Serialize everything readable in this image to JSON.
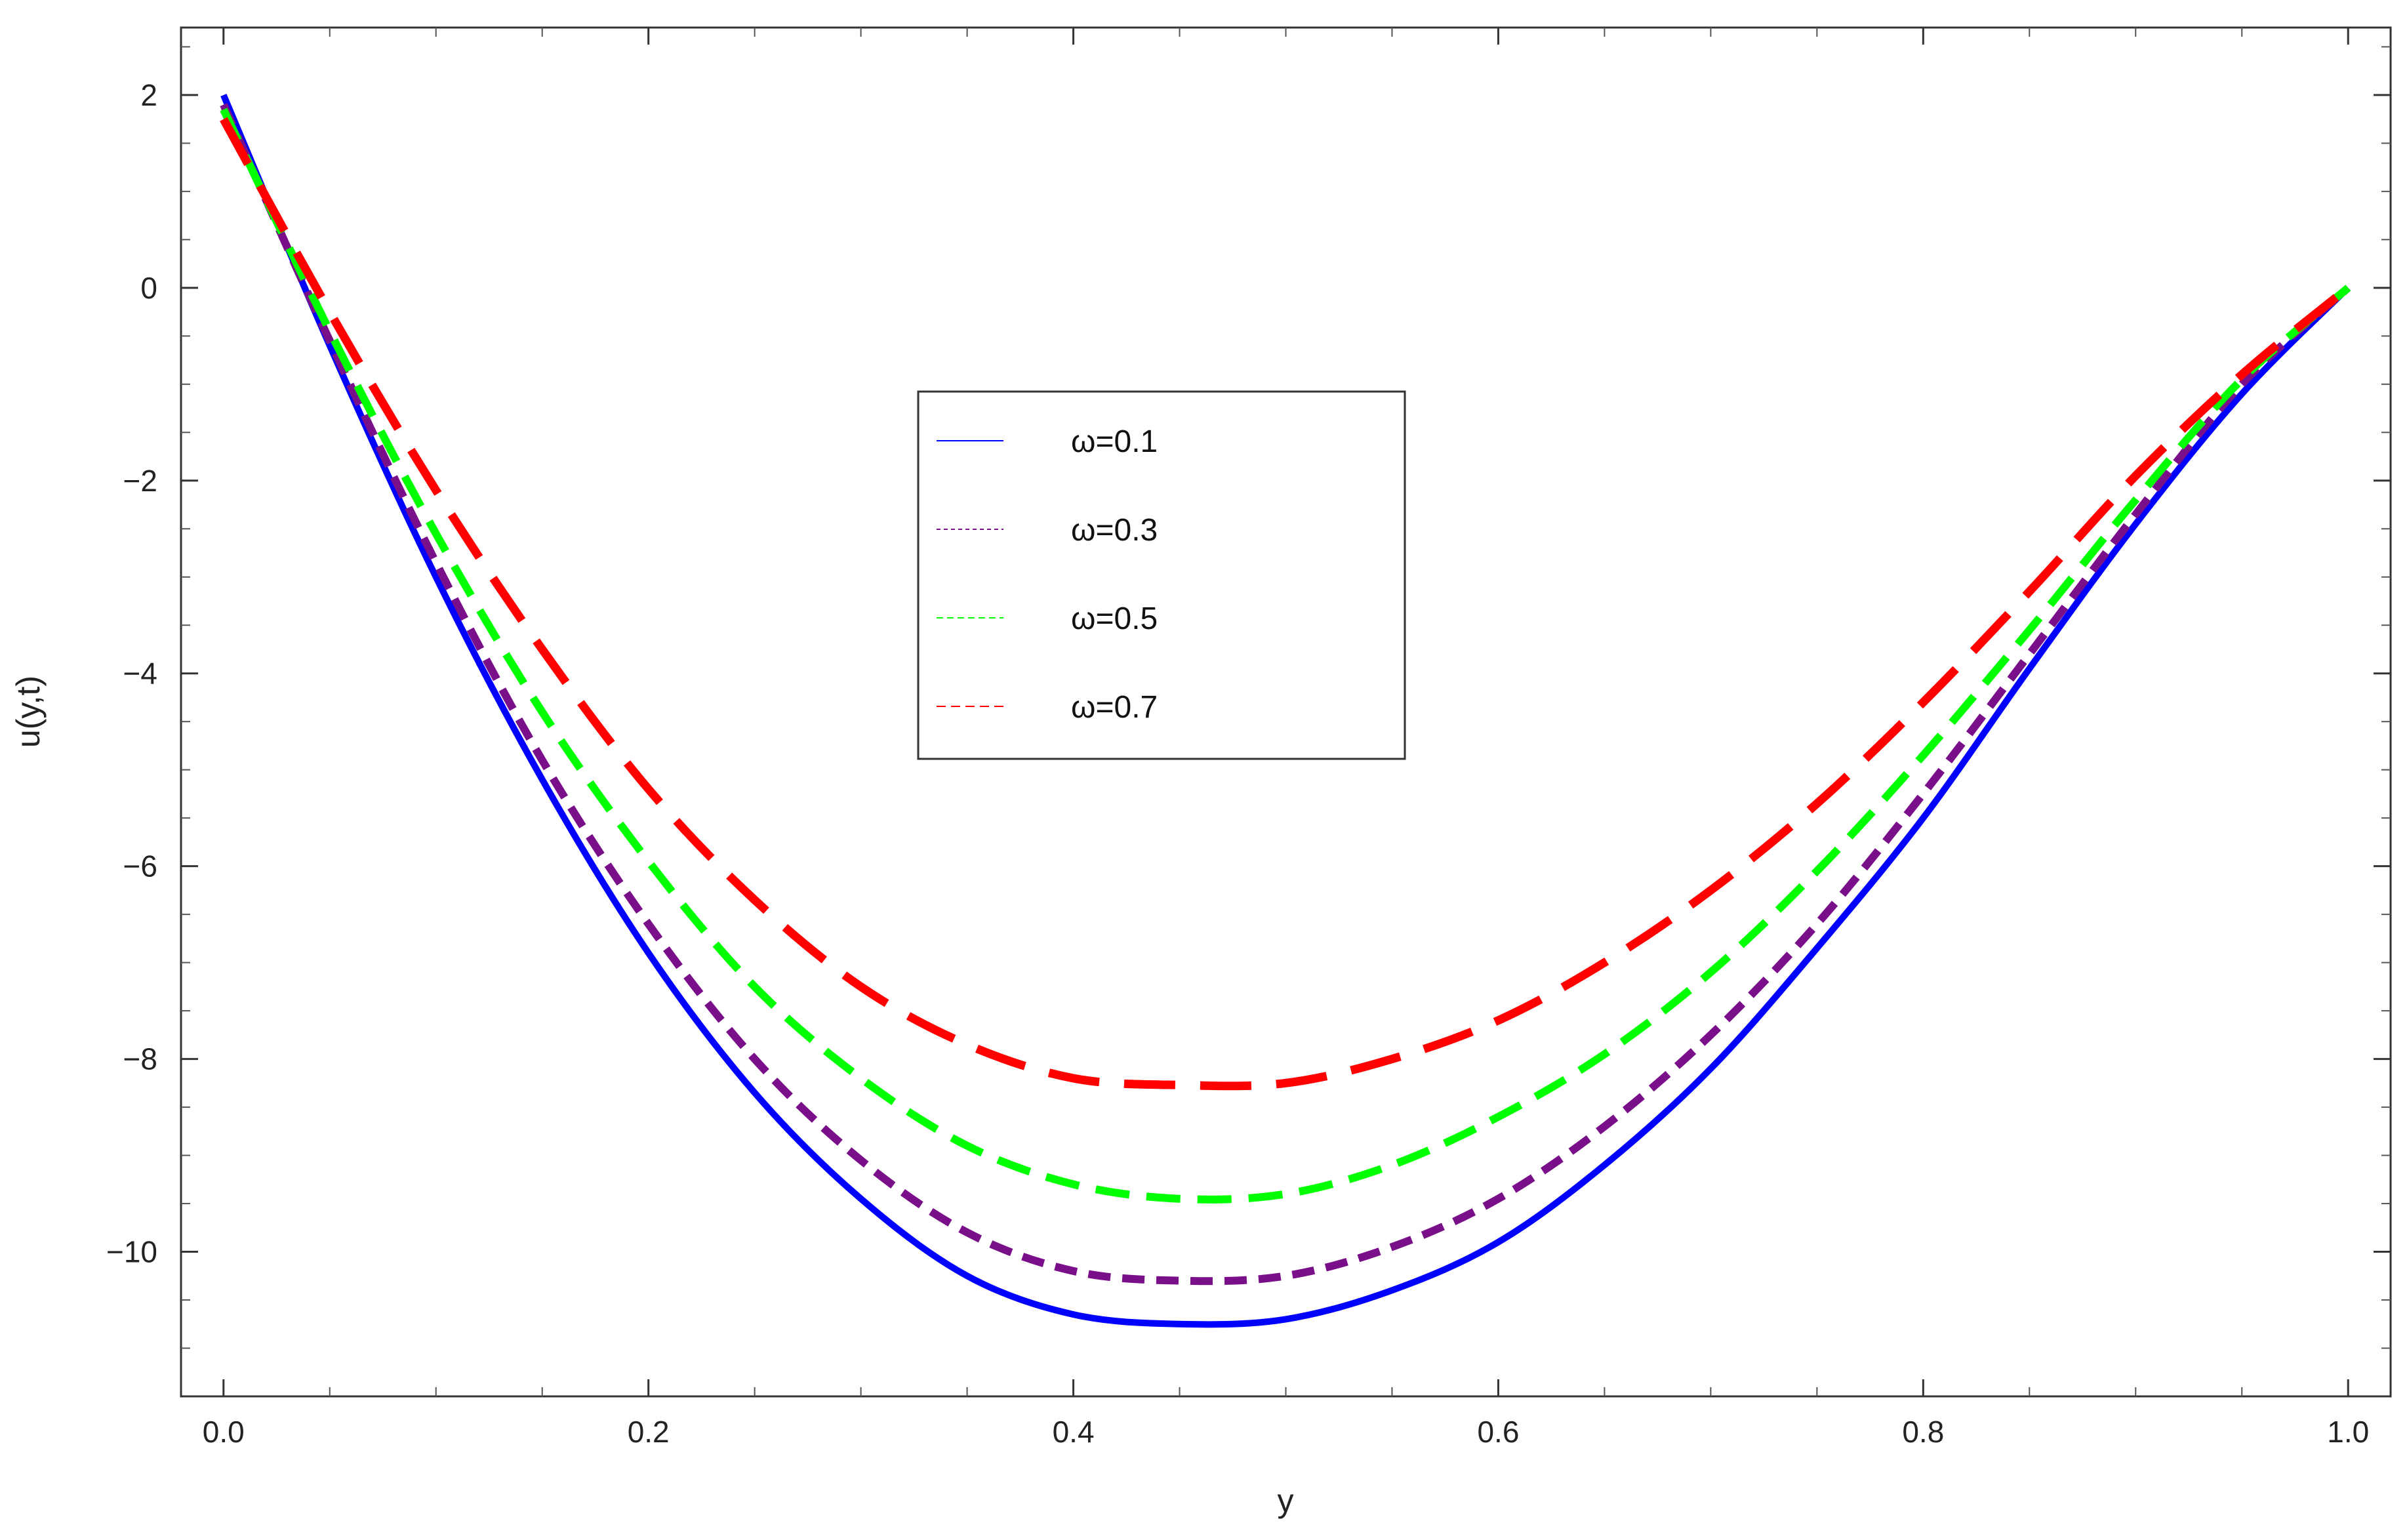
{
  "chart_data": {
    "type": "line",
    "xlabel": "y",
    "ylabel": "u(y,t)",
    "xlim": [
      -0.02,
      1.02
    ],
    "ylim": [
      -11.5,
      2.7
    ],
    "x_ticks": [
      "0.0",
      "0.2",
      "0.4",
      "0.6",
      "0.8",
      "1.0"
    ],
    "y_ticks": [
      "2",
      "0",
      "−2",
      "−4",
      "−6",
      "−8",
      "−10"
    ],
    "x_tick_values": [
      0,
      0.2,
      0.4,
      0.6,
      0.8,
      1.0
    ],
    "y_tick_values": [
      2,
      0,
      -2,
      -4,
      -6,
      -8,
      -10
    ],
    "grid": false,
    "legend_position": "upper-center",
    "x": [
      0.0,
      0.05,
      0.1,
      0.15,
      0.2,
      0.25,
      0.3,
      0.35,
      0.4,
      0.45,
      0.5,
      0.55,
      0.6,
      0.65,
      0.7,
      0.75,
      0.8,
      0.85,
      0.9,
      0.95,
      1.0
    ],
    "series": [
      {
        "name": "ω=0.1",
        "color": "#0000ff",
        "style": "solid",
        "values": [
          2.0,
          -0.6,
          -3.0,
          -5.1,
          -6.9,
          -8.35,
          -9.45,
          -10.25,
          -10.65,
          -10.75,
          -10.7,
          -10.4,
          -9.9,
          -9.1,
          -8.1,
          -6.85,
          -5.5,
          -3.95,
          -2.45,
          -1.1,
          0.0
        ]
      },
      {
        "name": "ω=0.3",
        "color": "#7a0f8a",
        "style": "short-dash",
        "values": [
          1.9,
          -0.55,
          -2.85,
          -4.9,
          -6.6,
          -8.0,
          -9.05,
          -9.8,
          -10.2,
          -10.3,
          -10.25,
          -9.95,
          -9.45,
          -8.7,
          -7.75,
          -6.6,
          -5.25,
          -3.8,
          -2.35,
          -1.0,
          0.0
        ]
      },
      {
        "name": "ω=0.5",
        "color": "#00ff00",
        "style": "dash",
        "values": [
          1.85,
          -0.45,
          -2.55,
          -4.4,
          -5.95,
          -7.25,
          -8.2,
          -8.9,
          -9.3,
          -9.45,
          -9.4,
          -9.1,
          -8.6,
          -7.95,
          -7.1,
          -6.05,
          -4.85,
          -3.55,
          -2.2,
          -0.95,
          0.0
        ]
      },
      {
        "name": "ω=0.7",
        "color": "#ff0000",
        "style": "long-dash",
        "values": [
          1.75,
          -0.25,
          -2.1,
          -3.75,
          -5.2,
          -6.35,
          -7.25,
          -7.85,
          -8.2,
          -8.27,
          -8.25,
          -8.0,
          -7.6,
          -7.0,
          -6.25,
          -5.35,
          -4.3,
          -3.15,
          -1.95,
          -0.9,
          0.0
        ]
      }
    ]
  }
}
